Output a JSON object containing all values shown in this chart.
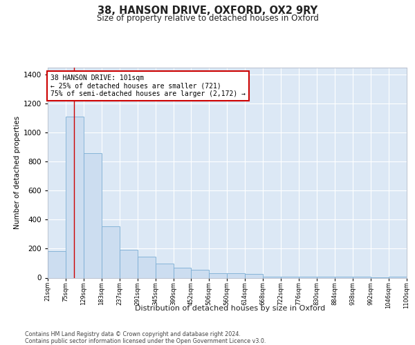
{
  "title": "38, HANSON DRIVE, OXFORD, OX2 9RY",
  "subtitle": "Size of property relative to detached houses in Oxford",
  "xlabel": "Distribution of detached houses by size in Oxford",
  "ylabel": "Number of detached properties",
  "footnote1": "Contains HM Land Registry data © Crown copyright and database right 2024.",
  "footnote2": "Contains public sector information licensed under the Open Government Licence v3.0.",
  "annotation_title": "38 HANSON DRIVE: 101sqm",
  "annotation_line1": "← 25% of detached houses are smaller (721)",
  "annotation_line2": "75% of semi-detached houses are larger (2,172) →",
  "bar_color": "#ccddf0",
  "bar_edge_color": "#7aadd4",
  "vline_color": "#cc0000",
  "annotation_box_edgecolor": "#cc0000",
  "background_color": "#ffffff",
  "plot_bg_color": "#dce8f5",
  "grid_color": "#c0cfe0",
  "bins": [
    21,
    75,
    129,
    183,
    237,
    291,
    345,
    399,
    452,
    506,
    560,
    614,
    668,
    722,
    776,
    830,
    884,
    938,
    992,
    1046,
    1100
  ],
  "counts": [
    183,
    1108,
    860,
    355,
    193,
    147,
    98,
    68,
    55,
    30,
    30,
    28,
    5,
    5,
    5,
    5,
    5,
    5,
    2,
    5
  ],
  "property_size": 101,
  "ylim": [
    0,
    1450
  ],
  "yticks": [
    0,
    200,
    400,
    600,
    800,
    1000,
    1200,
    1400
  ]
}
